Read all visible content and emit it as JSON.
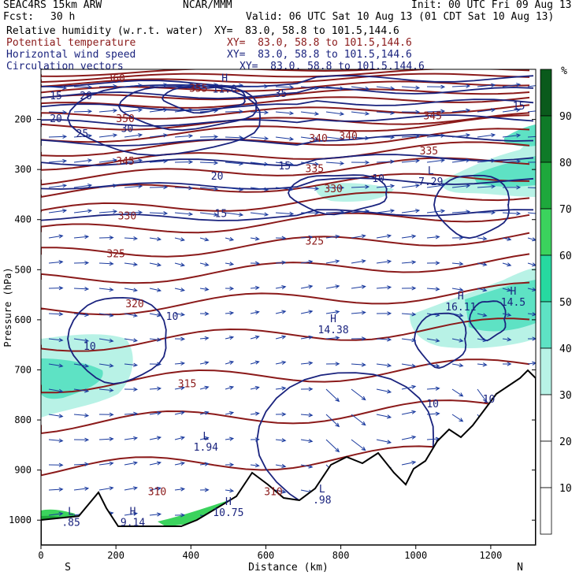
{
  "header": {
    "model": "SEAC4RS 15km ARW",
    "center": "NCAR/MMM",
    "init": "Init: 00 UTC Fri 09 Aug 13",
    "fcst_label": "Fcst:",
    "fcst_value": "30 h",
    "valid": "Valid: 06 UTC Sat 10 Aug 13 (01 CDT Sat 10 Aug 13)"
  },
  "fields": [
    {
      "name": "Relative humidity (w.r.t. water)",
      "xy": "XY=  83.0, 58.8 to 101.5,144.6",
      "color": "#000000"
    },
    {
      "name": "Potential temperature",
      "xy": "XY=  83.0, 58.8 to 101.5,144.6",
      "color": "#8b1a1a"
    },
    {
      "name": "Horizontal wind speed",
      "xy": "XY=  83.0, 58.8 to 101.5,144.6",
      "color": "#1a237e"
    },
    {
      "name": "Circulation vectors",
      "xy": "XY=  83.0, 58.8 to 101.5,144.6",
      "color": "#1a237e"
    }
  ],
  "colorbar": {
    "unit": "%",
    "labels": [
      "10",
      "20",
      "30",
      "40",
      "50",
      "60",
      "70",
      "80",
      "90"
    ],
    "colors": [
      "#ffffff",
      "#ffffff",
      "#ffffff",
      "#b8f2e6",
      "#5ee2c4",
      "#26d9a0",
      "#3bd35d",
      "#1ea83c",
      "#0f7a28",
      "#0a5a1c"
    ]
  },
  "chart_data": {
    "type": "cross-section",
    "xlabel": "Distance (km)",
    "ylabel": "Pressure (hPa)",
    "xlim": [
      0,
      1320
    ],
    "ylim": [
      1050,
      100
    ],
    "x_ticks": [
      "0",
      "200",
      "400",
      "600",
      "800",
      "1000",
      "1200"
    ],
    "y_ticks": [
      "200",
      "300",
      "400",
      "500",
      "600",
      "700",
      "800",
      "900",
      "1000"
    ],
    "x_end_labels": {
      "left": "S",
      "right": "N"
    },
    "theta_labels": [
      {
        "text": "360",
        "x": 200,
        "p": 125
      },
      {
        "text": "355",
        "x": 420,
        "p": 145
      },
      {
        "text": "350",
        "x": 225,
        "p": 205
      },
      {
        "text": "345",
        "x": 225,
        "p": 290
      },
      {
        "text": "340",
        "x": 740,
        "p": 245
      },
      {
        "text": "340",
        "x": 820,
        "p": 240
      },
      {
        "text": "345",
        "x": 1045,
        "p": 200
      },
      {
        "text": "335",
        "x": 1035,
        "p": 270
      },
      {
        "text": "335",
        "x": 730,
        "p": 305
      },
      {
        "text": "330",
        "x": 780,
        "p": 345
      },
      {
        "text": "330",
        "x": 230,
        "p": 400
      },
      {
        "text": "325",
        "x": 730,
        "p": 450
      },
      {
        "text": "325",
        "x": 200,
        "p": 475
      },
      {
        "text": "320",
        "x": 250,
        "p": 575
      },
      {
        "text": "315",
        "x": 390,
        "p": 735
      },
      {
        "text": "310",
        "x": 310,
        "p": 950
      },
      {
        "text": "310",
        "x": 620,
        "p": 950
      }
    ],
    "wind_labels": [
      {
        "text": "15",
        "x": 40,
        "p": 160
      },
      {
        "text": "20",
        "x": 120,
        "p": 160
      },
      {
        "text": "20",
        "x": 40,
        "p": 205
      },
      {
        "text": "25",
        "x": 110,
        "p": 235
      },
      {
        "text": "30",
        "x": 230,
        "p": 225
      },
      {
        "text": "35",
        "x": 640,
        "p": 155
      },
      {
        "text": "20",
        "x": 470,
        "p": 320
      },
      {
        "text": "15",
        "x": 650,
        "p": 300
      },
      {
        "text": "15",
        "x": 480,
        "p": 395
      },
      {
        "text": "10",
        "x": 900,
        "p": 325
      },
      {
        "text": "15",
        "x": 1275,
        "p": 180
      },
      {
        "text": "10",
        "x": 350,
        "p": 600
      },
      {
        "text": "10",
        "x": 130,
        "p": 660
      },
      {
        "text": "10",
        "x": 1045,
        "p": 775
      },
      {
        "text": "10",
        "x": 1195,
        "p": 765
      }
    ],
    "extrema": [
      {
        "type": "H",
        "value": "14.38",
        "x": 780,
        "p": 625
      },
      {
        "type": "H",
        "value": "16.11",
        "x": 1120,
        "p": 580
      },
      {
        "type": "H",
        "value": "14.5",
        "x": 1260,
        "p": 570
      },
      {
        "type": "H",
        "value": "11.0",
        "x": 490,
        "p": 145
      },
      {
        "type": "L",
        "value": "1.94",
        "x": 440,
        "p": 860
      },
      {
        "type": "L",
        "value": "7.29",
        "x": 1040,
        "p": 330
      },
      {
        "type": "H",
        "value": "9.14",
        "x": 245,
        "p": 1010
      },
      {
        "type": "L",
        "value": ".85",
        "x": 80,
        "p": 1010
      },
      {
        "type": "H",
        "value": "10.75",
        "x": 500,
        "p": 990
      },
      {
        "type": "L",
        "value": ".98",
        "x": 750,
        "p": 965
      }
    ]
  }
}
